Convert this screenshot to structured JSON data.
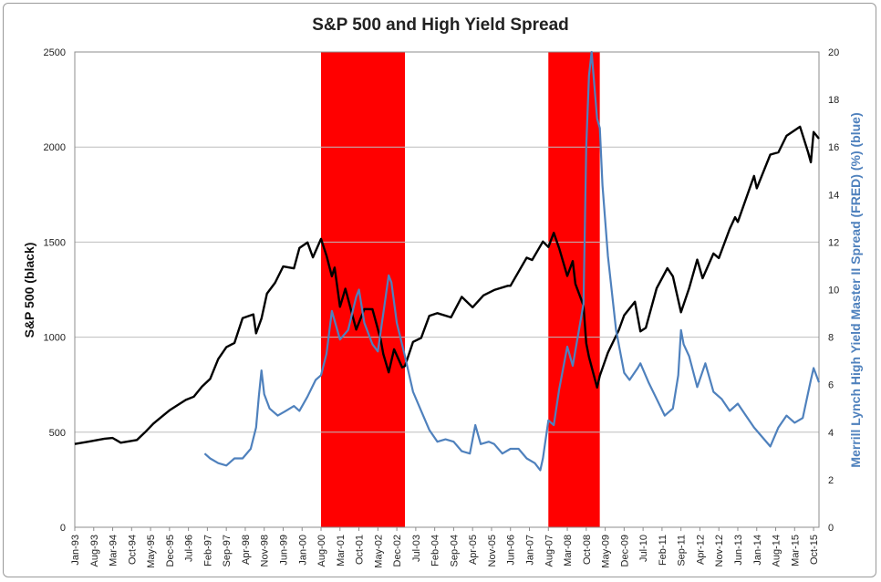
{
  "chart_data": {
    "type": "line",
    "title": "S&P 500 and High Yield Spread",
    "ylabel_left": "S&P 500 (black)",
    "ylabel_right": "Merrill Lynch High Yield Master II Spread (FRED) (%) (blue)",
    "y_left_range": [
      0,
      2500
    ],
    "y_left_ticks": [
      "0",
      "500",
      "1000",
      "1500",
      "2000",
      "2500"
    ],
    "y_right_range": [
      0,
      20
    ],
    "y_right_ticks": [
      "0",
      "2",
      "4",
      "6",
      "8",
      "10",
      "12",
      "14",
      "16",
      "18",
      "20"
    ],
    "x_range": [
      "1993-01",
      "2015-12"
    ],
    "x_tick_labels": [
      "Jan-93",
      "Aug-93",
      "Mar-94",
      "Oct-94",
      "May-95",
      "Dec-95",
      "Jul-96",
      "Feb-97",
      "Sep-97",
      "Apr-98",
      "Nov-98",
      "Jun-99",
      "Jan-00",
      "Aug-00",
      "Mar-01",
      "Oct-01",
      "May-02",
      "Dec-02",
      "Jul-03",
      "Feb-04",
      "Sep-04",
      "Apr-05",
      "Nov-05",
      "Jun-06",
      "Jan-07",
      "Aug-07",
      "Mar-08",
      "Oct-08",
      "May-09",
      "Dec-09",
      "Jul-10",
      "Feb-11",
      "Sep-11",
      "Apr-12",
      "Nov-12",
      "Jun-13",
      "Jan-14",
      "Aug-14",
      "Mar-15",
      "Oct-15"
    ],
    "grid": true,
    "shaded_periods": [
      {
        "start": "2000-08",
        "end": "2003-03",
        "color": "#ff0000"
      },
      {
        "start": "2007-08",
        "end": "2009-03",
        "color": "#ff0000"
      }
    ],
    "series": [
      {
        "color": "#000000",
        "axis": "left",
        "points": [
          [
            "1993-01",
            438
          ],
          [
            "1993-06",
            450
          ],
          [
            "1993-12",
            466
          ],
          [
            "1994-03",
            470
          ],
          [
            "1994-06",
            445
          ],
          [
            "1994-12",
            459
          ],
          [
            "1995-03",
            500
          ],
          [
            "1995-06",
            545
          ],
          [
            "1995-09",
            580
          ],
          [
            "1995-12",
            615
          ],
          [
            "1996-06",
            670
          ],
          [
            "1996-09",
            687
          ],
          [
            "1996-12",
            740
          ],
          [
            "1997-03",
            780
          ],
          [
            "1997-06",
            885
          ],
          [
            "1997-09",
            947
          ],
          [
            "1997-12",
            970
          ],
          [
            "1998-03",
            1100
          ],
          [
            "1998-07",
            1120
          ],
          [
            "1998-08",
            1020
          ],
          [
            "1998-10",
            1098
          ],
          [
            "1998-12",
            1229
          ],
          [
            "1999-03",
            1286
          ],
          [
            "1999-06",
            1372
          ],
          [
            "1999-10",
            1362
          ],
          [
            "1999-12",
            1469
          ],
          [
            "2000-03",
            1498
          ],
          [
            "2000-05",
            1420
          ],
          [
            "2000-08",
            1517
          ],
          [
            "2000-10",
            1429
          ],
          [
            "2000-12",
            1320
          ],
          [
            "2001-01",
            1366
          ],
          [
            "2001-03",
            1160
          ],
          [
            "2001-05",
            1255
          ],
          [
            "2001-09",
            1040
          ],
          [
            "2001-12",
            1148
          ],
          [
            "2002-03",
            1147
          ],
          [
            "2002-06",
            990
          ],
          [
            "2002-07",
            911
          ],
          [
            "2002-09",
            815
          ],
          [
            "2002-11",
            936
          ],
          [
            "2003-02",
            841
          ],
          [
            "2003-03",
            848
          ],
          [
            "2003-06",
            975
          ],
          [
            "2003-09",
            996
          ],
          [
            "2003-12",
            1112
          ],
          [
            "2004-03",
            1126
          ],
          [
            "2004-08",
            1104
          ],
          [
            "2004-12",
            1212
          ],
          [
            "2005-04",
            1157
          ],
          [
            "2005-08",
            1220
          ],
          [
            "2005-12",
            1248
          ],
          [
            "2006-05",
            1270
          ],
          [
            "2006-06",
            1270
          ],
          [
            "2006-12",
            1418
          ],
          [
            "2007-02",
            1406
          ],
          [
            "2007-06",
            1503
          ],
          [
            "2007-08",
            1474
          ],
          [
            "2007-10",
            1549
          ],
          [
            "2007-12",
            1468
          ],
          [
            "2008-03",
            1322
          ],
          [
            "2008-05",
            1400
          ],
          [
            "2008-06",
            1280
          ],
          [
            "2008-09",
            1166
          ],
          [
            "2008-10",
            968
          ],
          [
            "2008-11",
            896
          ],
          [
            "2009-02",
            735
          ],
          [
            "2009-03",
            797
          ],
          [
            "2009-06",
            919
          ],
          [
            "2009-10",
            1036
          ],
          [
            "2009-12",
            1115
          ],
          [
            "2010-04",
            1186
          ],
          [
            "2010-06",
            1030
          ],
          [
            "2010-08",
            1049
          ],
          [
            "2010-12",
            1257
          ],
          [
            "2011-04",
            1363
          ],
          [
            "2011-06",
            1320
          ],
          [
            "2011-09",
            1131
          ],
          [
            "2011-12",
            1257
          ],
          [
            "2012-03",
            1408
          ],
          [
            "2012-05",
            1310
          ],
          [
            "2012-09",
            1440
          ],
          [
            "2012-11",
            1416
          ],
          [
            "2013-03",
            1569
          ],
          [
            "2013-05",
            1631
          ],
          [
            "2013-06",
            1606
          ],
          [
            "2013-12",
            1848
          ],
          [
            "2014-01",
            1783
          ],
          [
            "2014-06",
            1960
          ],
          [
            "2014-09",
            1972
          ],
          [
            "2014-12",
            2059
          ],
          [
            "2015-05",
            2107
          ],
          [
            "2015-08",
            1972
          ],
          [
            "2015-09",
            1920
          ],
          [
            "2015-10",
            2079
          ],
          [
            "2015-12",
            2044
          ]
        ]
      },
      {
        "color": "#4f81bd",
        "axis": "right",
        "points": [
          [
            "1997-01",
            3.1
          ],
          [
            "1997-03",
            2.9
          ],
          [
            "1997-06",
            2.7
          ],
          [
            "1997-09",
            2.6
          ],
          [
            "1997-12",
            2.9
          ],
          [
            "1998-03",
            2.9
          ],
          [
            "1998-06",
            3.3
          ],
          [
            "1998-08",
            4.2
          ],
          [
            "1998-09",
            5.5
          ],
          [
            "1998-10",
            6.6
          ],
          [
            "1998-11",
            5.6
          ],
          [
            "1999-01",
            5.0
          ],
          [
            "1999-04",
            4.7
          ],
          [
            "1999-07",
            4.9
          ],
          [
            "1999-10",
            5.1
          ],
          [
            "1999-12",
            4.9
          ],
          [
            "2000-03",
            5.5
          ],
          [
            "2000-06",
            6.2
          ],
          [
            "2000-08",
            6.4
          ],
          [
            "2000-10",
            7.3
          ],
          [
            "2000-12",
            9.1
          ],
          [
            "2001-03",
            7.9
          ],
          [
            "2001-06",
            8.3
          ],
          [
            "2001-09",
            9.7
          ],
          [
            "2001-10",
            10.0
          ],
          [
            "2001-12",
            8.6
          ],
          [
            "2002-03",
            7.7
          ],
          [
            "2002-05",
            7.4
          ],
          [
            "2002-07",
            9.0
          ],
          [
            "2002-09",
            10.6
          ],
          [
            "2002-10",
            10.3
          ],
          [
            "2002-12",
            8.6
          ],
          [
            "2003-03",
            7.2
          ],
          [
            "2003-06",
            5.7
          ],
          [
            "2003-09",
            4.9
          ],
          [
            "2003-12",
            4.1
          ],
          [
            "2004-03",
            3.6
          ],
          [
            "2004-06",
            3.7
          ],
          [
            "2004-09",
            3.6
          ],
          [
            "2004-12",
            3.2
          ],
          [
            "2005-03",
            3.1
          ],
          [
            "2005-05",
            4.3
          ],
          [
            "2005-07",
            3.5
          ],
          [
            "2005-10",
            3.6
          ],
          [
            "2005-12",
            3.5
          ],
          [
            "2006-03",
            3.1
          ],
          [
            "2006-06",
            3.3
          ],
          [
            "2006-09",
            3.3
          ],
          [
            "2006-12",
            2.9
          ],
          [
            "2007-03",
            2.7
          ],
          [
            "2007-05",
            2.4
          ],
          [
            "2007-06",
            2.9
          ],
          [
            "2007-08",
            4.5
          ],
          [
            "2007-10",
            4.3
          ],
          [
            "2007-12",
            5.8
          ],
          [
            "2008-03",
            7.6
          ],
          [
            "2008-05",
            6.8
          ],
          [
            "2008-07",
            8.1
          ],
          [
            "2008-09",
            9.4
          ],
          [
            "2008-10",
            16.0
          ],
          [
            "2008-11",
            19.0
          ],
          [
            "2008-12",
            20.0
          ],
          [
            "2009-02",
            17.2
          ],
          [
            "2009-03",
            16.8
          ],
          [
            "2009-04",
            14.4
          ],
          [
            "2009-06",
            11.4
          ],
          [
            "2009-09",
            8.3
          ],
          [
            "2009-12",
            6.5
          ],
          [
            "2010-02",
            6.2
          ],
          [
            "2010-05",
            6.7
          ],
          [
            "2010-06",
            6.9
          ],
          [
            "2010-09",
            6.1
          ],
          [
            "2010-12",
            5.4
          ],
          [
            "2011-03",
            4.7
          ],
          [
            "2011-06",
            5.0
          ],
          [
            "2011-08",
            6.4
          ],
          [
            "2011-09",
            8.3
          ],
          [
            "2011-10",
            7.7
          ],
          [
            "2011-12",
            7.2
          ],
          [
            "2012-03",
            5.9
          ],
          [
            "2012-06",
            6.9
          ],
          [
            "2012-09",
            5.7
          ],
          [
            "2012-12",
            5.4
          ],
          [
            "2013-03",
            4.9
          ],
          [
            "2013-06",
            5.2
          ],
          [
            "2013-09",
            4.7
          ],
          [
            "2013-12",
            4.2
          ],
          [
            "2014-03",
            3.8
          ],
          [
            "2014-06",
            3.4
          ],
          [
            "2014-09",
            4.2
          ],
          [
            "2014-12",
            4.7
          ],
          [
            "2015-03",
            4.4
          ],
          [
            "2015-06",
            4.6
          ],
          [
            "2015-09",
            6.2
          ],
          [
            "2015-10",
            6.7
          ],
          [
            "2015-12",
            6.1
          ]
        ]
      }
    ]
  }
}
